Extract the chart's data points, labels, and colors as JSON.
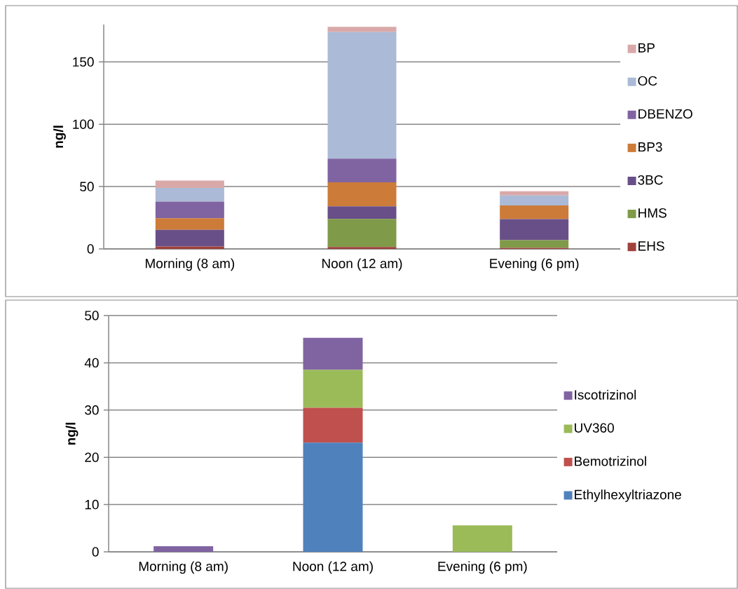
{
  "chart_data": [
    {
      "type": "bar",
      "stacked": true,
      "categories": [
        "Morning (8 am)",
        "Noon (12 am)",
        "Evening (6 pm)"
      ],
      "ylabel": "ng/l",
      "ylim": [
        0,
        180
      ],
      "yticks": [
        0,
        50,
        100,
        150
      ],
      "grid": "y",
      "legend": "right",
      "series": [
        {
          "name": "EHS",
          "color": "#a0413c",
          "values": [
            2,
            1.5,
            0.9
          ]
        },
        {
          "name": "HMS",
          "color": "#7f9a48",
          "values": [
            0,
            22.5,
            6.1
          ]
        },
        {
          "name": "3BC",
          "color": "#694f88",
          "values": [
            13.3,
            10.2,
            16.9
          ]
        },
        {
          "name": "BP3",
          "color": "#cc7b38",
          "values": [
            9.3,
            19.2,
            10.9
          ]
        },
        {
          "name": "DBENZO",
          "color": "#8064a2",
          "values": [
            13.3,
            19,
            0
          ]
        },
        {
          "name": "OC",
          "color": "#aabad7",
          "values": [
            11,
            101.6,
            8.1
          ]
        },
        {
          "name": "BP",
          "color": "#d9a9a9",
          "values": [
            6,
            4.2,
            3.3
          ]
        }
      ]
    },
    {
      "type": "bar",
      "stacked": true,
      "categories": [
        "Morning (8 am)",
        "Noon (12 am)",
        "Evening (6 pm)"
      ],
      "ylabel": "ng/l",
      "ylim": [
        0,
        50
      ],
      "yticks": [
        0,
        10,
        20,
        30,
        40,
        50
      ],
      "grid": "y",
      "legend": "right",
      "series": [
        {
          "name": "Ethylhexyltriazone",
          "color": "#4f81bd",
          "values": [
            0,
            23.1,
            0
          ]
        },
        {
          "name": "Bemotrizinol",
          "color": "#c0504d",
          "values": [
            0,
            7.4,
            0
          ]
        },
        {
          "name": "UV360",
          "color": "#9bbb59",
          "values": [
            0,
            8,
            5.6
          ]
        },
        {
          "name": "Iscotrizinol",
          "color": "#8064a2",
          "values": [
            1.2,
            6.8,
            0
          ]
        }
      ]
    }
  ]
}
